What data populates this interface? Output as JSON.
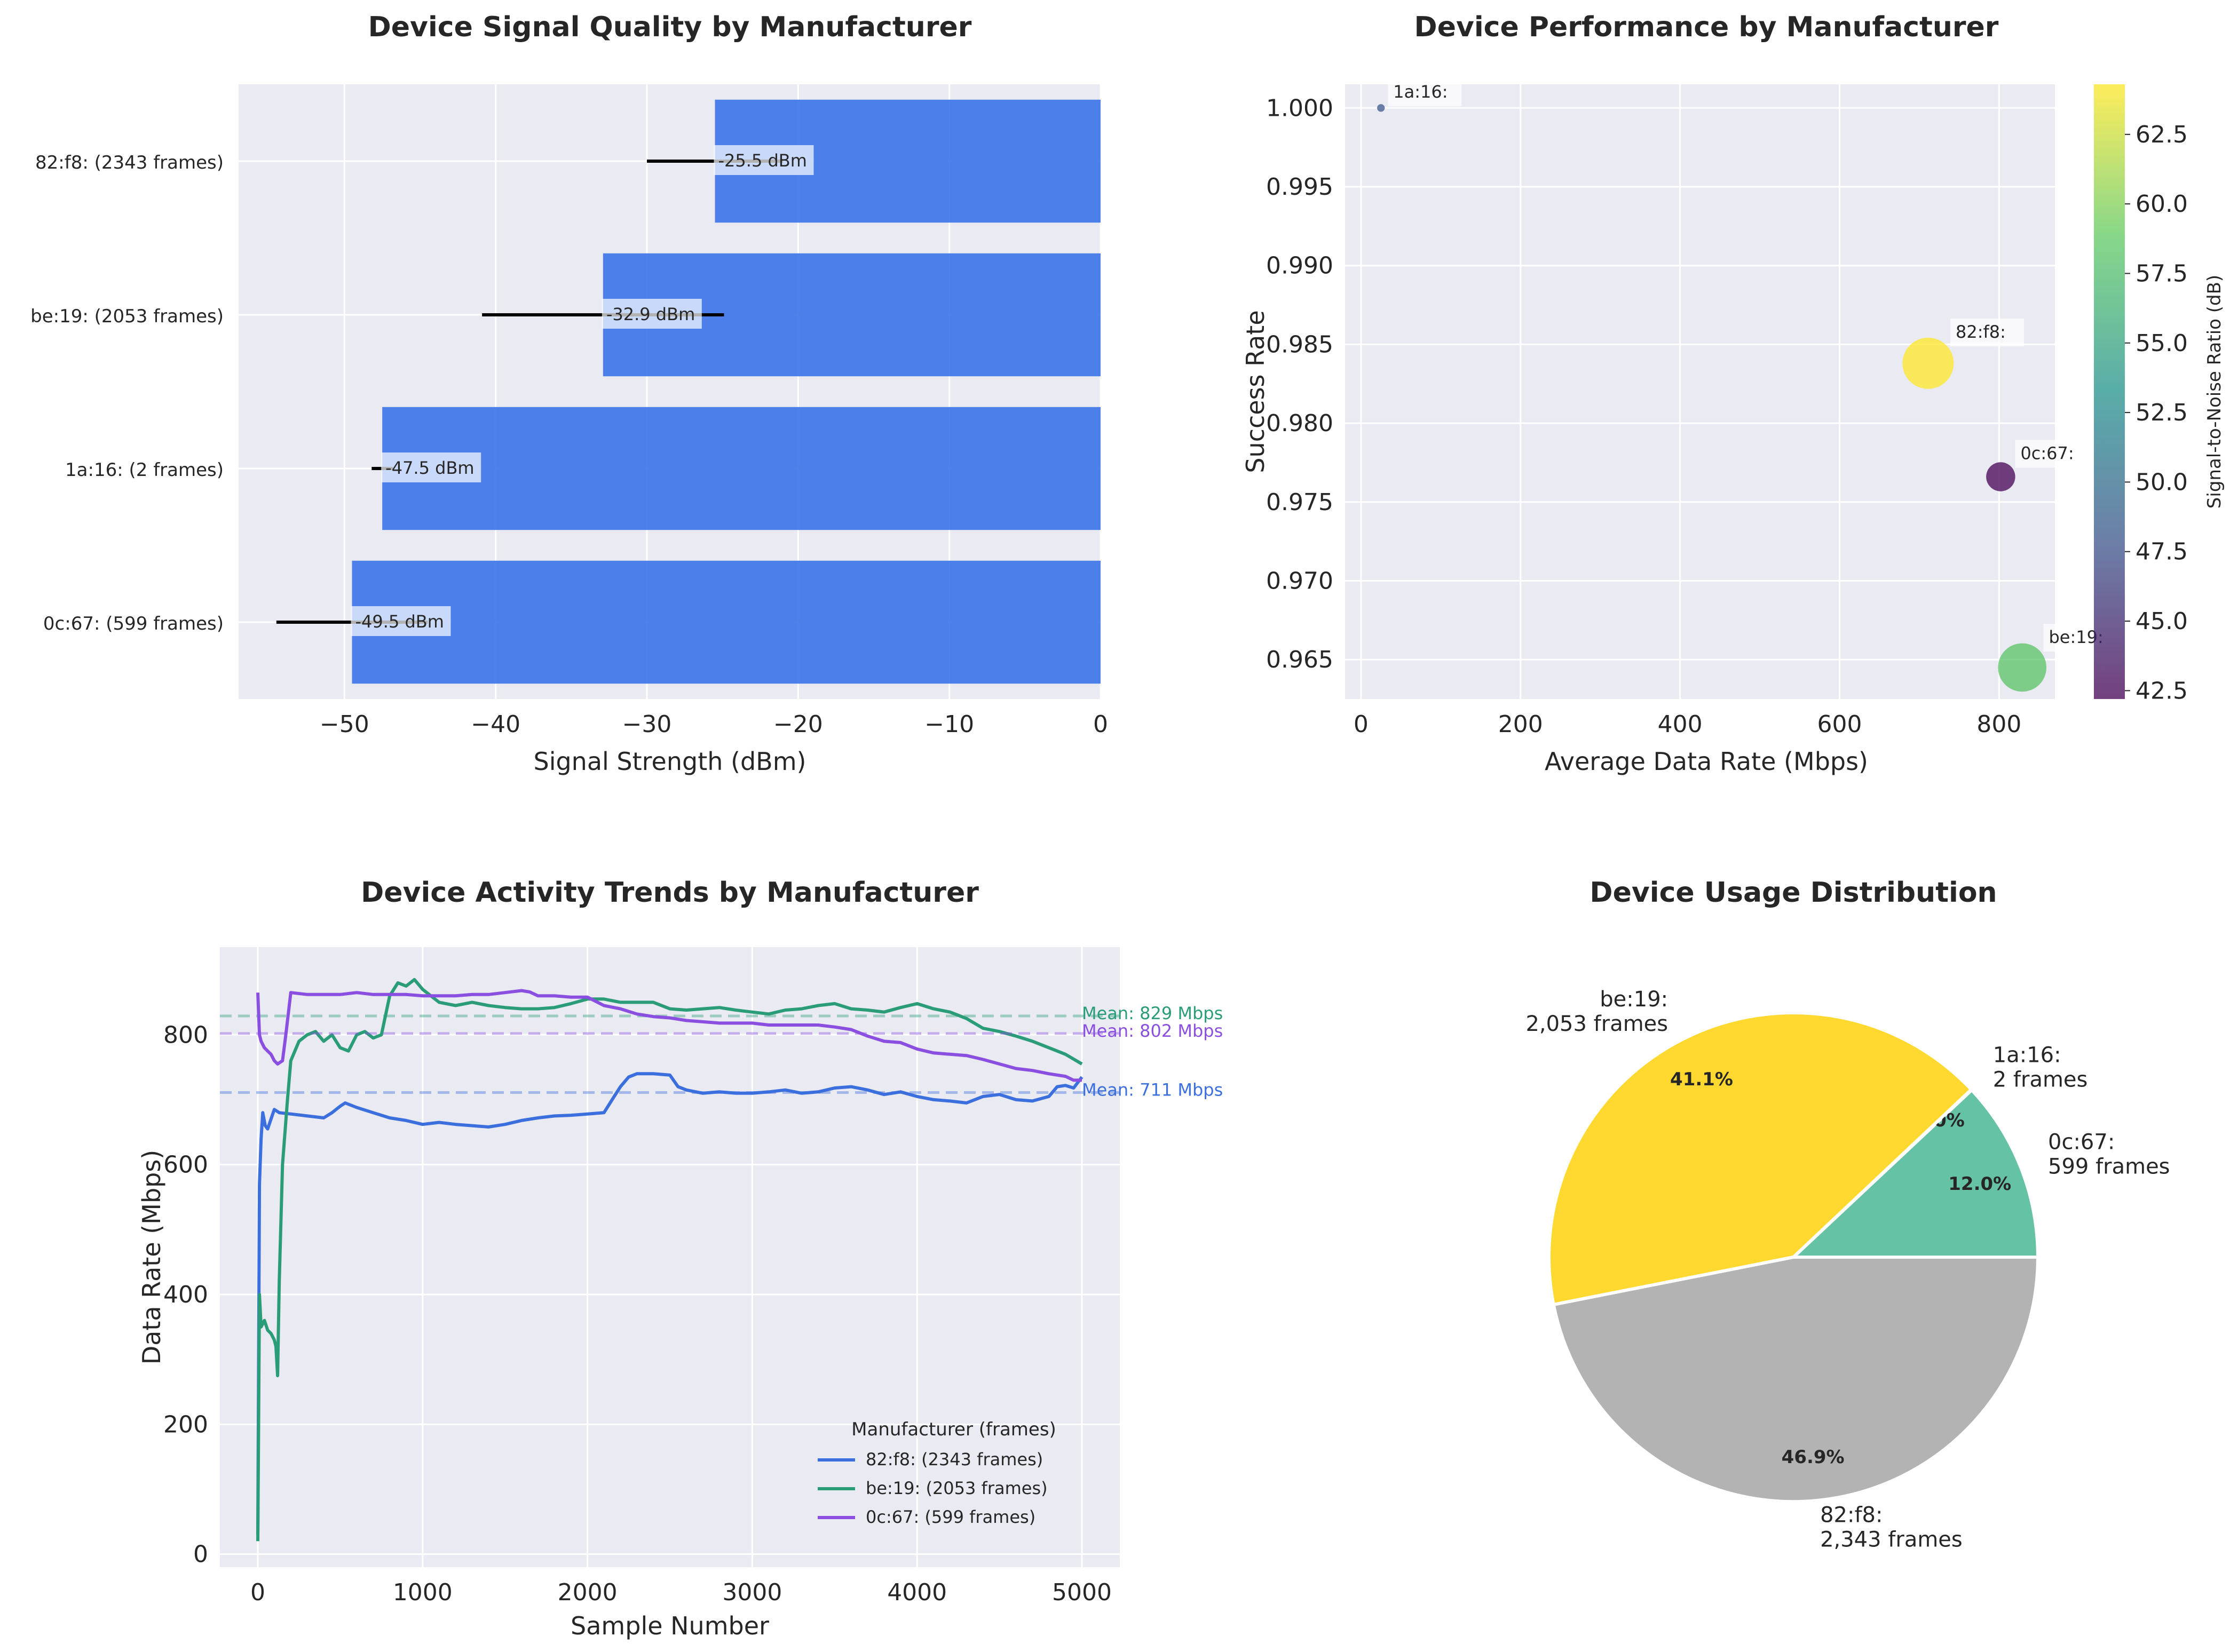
{
  "colors": {
    "axes_bg": "#eaeaf2",
    "grid": "#ffffff",
    "bar": "#3b73e8",
    "series": [
      "#3b6fde",
      "#2a9d78",
      "#8a4fe0"
    ],
    "pie": [
      "#66c2a5",
      "#fc8d62",
      "#ffd92f",
      "#b3b3b3"
    ]
  },
  "chart_data": [
    {
      "type": "bar",
      "orientation": "horizontal",
      "title": "Device Signal Quality by Manufacturer",
      "xlabel": "Signal Strength (dBm)",
      "xlim": [
        -57,
        0
      ],
      "xticks": [
        -50,
        -40,
        -30,
        -20,
        -10,
        0
      ],
      "xtick_labels": [
        "−50",
        "−40",
        "−30",
        "−20",
        "−10",
        "0"
      ],
      "categories": [
        "0c:67: (599 frames)",
        "1a:16: (2 frames)",
        "be:19: (2053 frames)",
        "82:f8: (2343 frames)"
      ],
      "values": [
        -49.5,
        -47.5,
        -32.9,
        -25.5
      ],
      "errors": [
        5.0,
        0.7,
        8.0,
        4.5
      ],
      "value_labels": [
        "-49.5 dBm",
        "-47.5 dBm",
        "-32.9 dBm",
        "-25.5 dBm"
      ],
      "grid": true
    },
    {
      "type": "scatter",
      "title": "Device Performance by Manufacturer",
      "xlabel": "Average Data Rate (Mbps)",
      "ylabel": "Success Rate",
      "xlim": [
        -20,
        870
      ],
      "ylim": [
        0.9625,
        1.0015
      ],
      "xticks": [
        0,
        200,
        400,
        600,
        800
      ],
      "yticks": [
        0.965,
        0.97,
        0.975,
        0.98,
        0.985,
        0.99,
        0.995,
        1.0
      ],
      "ytick_labels": [
        "0.965",
        "0.970",
        "0.975",
        "0.980",
        "0.985",
        "0.990",
        "0.995",
        "1.000"
      ],
      "colorbar": {
        "label": "Signal-to-Noise Ratio (dB)",
        "range": [
          42.2,
          64.3
        ],
        "ticks": [
          42.5,
          45.0,
          47.5,
          50.0,
          52.5,
          55.0,
          57.5,
          60.0,
          62.5
        ],
        "tick_labels": [
          "42.5",
          "45.0",
          "47.5",
          "50.0",
          "52.5",
          "55.0",
          "57.5",
          "60.0",
          "62.5"
        ]
      },
      "points": [
        {
          "label": "1a:16:",
          "x": 25,
          "y": 1.0,
          "snr": 48.0,
          "frames": 2
        },
        {
          "label": "82:f8:",
          "x": 711,
          "y": 0.9838,
          "snr": 64.3,
          "frames": 2343
        },
        {
          "label": "0c:67:",
          "x": 802,
          "y": 0.9766,
          "snr": 42.2,
          "frames": 599
        },
        {
          "label": "be:19:",
          "x": 829,
          "y": 0.9645,
          "snr": 58.2,
          "frames": 2053
        }
      ],
      "grid": true
    },
    {
      "type": "line",
      "title": "Device Activity Trends by Manufacturer",
      "xlabel": "Sample Number",
      "ylabel": "Data Rate (Mbps)",
      "xlim": [
        -230,
        5230
      ],
      "ylim": [
        -20,
        935
      ],
      "xticks": [
        0,
        1000,
        2000,
        3000,
        4000,
        5000
      ],
      "yticks": [
        0,
        200,
        400,
        600,
        800
      ],
      "legend_title": "Manufacturer (frames)",
      "legend_position": "lower-right",
      "series": [
        {
          "name": "82:f8: (2343 frames)",
          "mean": 711,
          "mean_label": "Mean: 711 Mbps",
          "x": [
            0,
            10,
            20,
            30,
            45,
            60,
            80,
            100,
            130,
            200,
            300,
            400,
            450,
            500,
            530,
            600,
            700,
            800,
            900,
            1000,
            1100,
            1200,
            1300,
            1400,
            1500,
            1600,
            1700,
            1800,
            1900,
            2000,
            2100,
            2150,
            2200,
            2250,
            2300,
            2400,
            2500,
            2550,
            2600,
            2700,
            2800,
            2900,
            3000,
            3100,
            3200,
            3300,
            3400,
            3500,
            3600,
            3700,
            3800,
            3900,
            4000,
            4100,
            4200,
            4300,
            4400,
            4500,
            4600,
            4700,
            4800,
            4850,
            4900,
            4950,
            5000
          ],
          "y": [
            30,
            570,
            640,
            680,
            660,
            655,
            670,
            685,
            680,
            678,
            675,
            672,
            680,
            690,
            695,
            688,
            680,
            672,
            668,
            662,
            665,
            662,
            660,
            658,
            662,
            668,
            672,
            675,
            676,
            678,
            680,
            700,
            720,
            735,
            740,
            740,
            738,
            720,
            715,
            710,
            712,
            710,
            710,
            712,
            715,
            710,
            712,
            718,
            720,
            715,
            708,
            712,
            705,
            700,
            698,
            695,
            705,
            708,
            700,
            698,
            705,
            720,
            722,
            718,
            735
          ]
        },
        {
          "name": "be:19: (2053 frames)",
          "mean": 829,
          "mean_label": "Mean: 829 Mbps",
          "x": [
            0,
            10,
            20,
            40,
            60,
            80,
            100,
            110,
            120,
            130,
            150,
            180,
            200,
            250,
            300,
            350,
            400,
            450,
            500,
            550,
            600,
            650,
            700,
            750,
            800,
            850,
            900,
            950,
            1000,
            1050,
            1100,
            1200,
            1300,
            1400,
            1500,
            1600,
            1700,
            1800,
            1900,
            2000,
            2100,
            2200,
            2300,
            2400,
            2500,
            2600,
            2700,
            2800,
            2900,
            3000,
            3100,
            3200,
            3300,
            3400,
            3500,
            3600,
            3700,
            3800,
            3900,
            4000,
            4100,
            4200,
            4300,
            4400,
            4500,
            4600,
            4700,
            4800,
            4900,
            5000
          ],
          "y": [
            20,
            400,
            350,
            360,
            345,
            340,
            330,
            320,
            275,
            420,
            600,
            700,
            760,
            790,
            800,
            805,
            790,
            800,
            780,
            775,
            800,
            805,
            795,
            800,
            860,
            880,
            875,
            885,
            870,
            860,
            850,
            845,
            850,
            845,
            842,
            840,
            840,
            842,
            848,
            855,
            855,
            850,
            850,
            850,
            840,
            838,
            840,
            842,
            838,
            835,
            832,
            838,
            840,
            845,
            848,
            840,
            838,
            835,
            842,
            848,
            840,
            835,
            825,
            810,
            805,
            798,
            790,
            780,
            770,
            755
          ]
        },
        {
          "name": "0c:67: (599 frames)",
          "mean": 802,
          "mean_label": "Mean: 802 Mbps",
          "x": [
            0,
            10,
            20,
            40,
            60,
            80,
            100,
            120,
            150,
            170,
            200,
            300,
            400,
            500,
            600,
            700,
            800,
            900,
            1000,
            1100,
            1200,
            1300,
            1400,
            1500,
            1600,
            1650,
            1700,
            1800,
            1900,
            2000,
            2100,
            2200,
            2300,
            2400,
            2500,
            2600,
            2700,
            2800,
            2900,
            3000,
            3100,
            3200,
            3300,
            3400,
            3500,
            3600,
            3700,
            3800,
            3900,
            4000,
            4100,
            4200,
            4300,
            4400,
            4500,
            4600,
            4700,
            4800,
            4900,
            4950,
            5000
          ],
          "y": [
            865,
            800,
            790,
            780,
            775,
            770,
            760,
            755,
            760,
            800,
            865,
            862,
            862,
            862,
            865,
            862,
            862,
            862,
            860,
            860,
            860,
            862,
            862,
            865,
            868,
            866,
            860,
            860,
            858,
            858,
            845,
            840,
            832,
            828,
            826,
            822,
            820,
            818,
            818,
            818,
            815,
            815,
            815,
            815,
            812,
            808,
            798,
            790,
            788,
            778,
            772,
            770,
            768,
            762,
            755,
            748,
            745,
            740,
            736,
            730,
            730
          ]
        }
      ],
      "grid": true
    },
    {
      "type": "pie",
      "title": "Device Usage Distribution",
      "slices": [
        {
          "label": "0c:67:",
          "frames_label": "599 frames",
          "value": 599,
          "pct_label": "12.0%"
        },
        {
          "label": "1a:16:",
          "frames_label": "2 frames",
          "value": 2,
          "pct_label": "0.0%"
        },
        {
          "label": "be:19:",
          "frames_label": "2,053 frames",
          "value": 2053,
          "pct_label": "41.1%"
        },
        {
          "label": "82:f8:",
          "frames_label": "2,343 frames",
          "value": 2343,
          "pct_label": "46.9%"
        }
      ]
    }
  ]
}
